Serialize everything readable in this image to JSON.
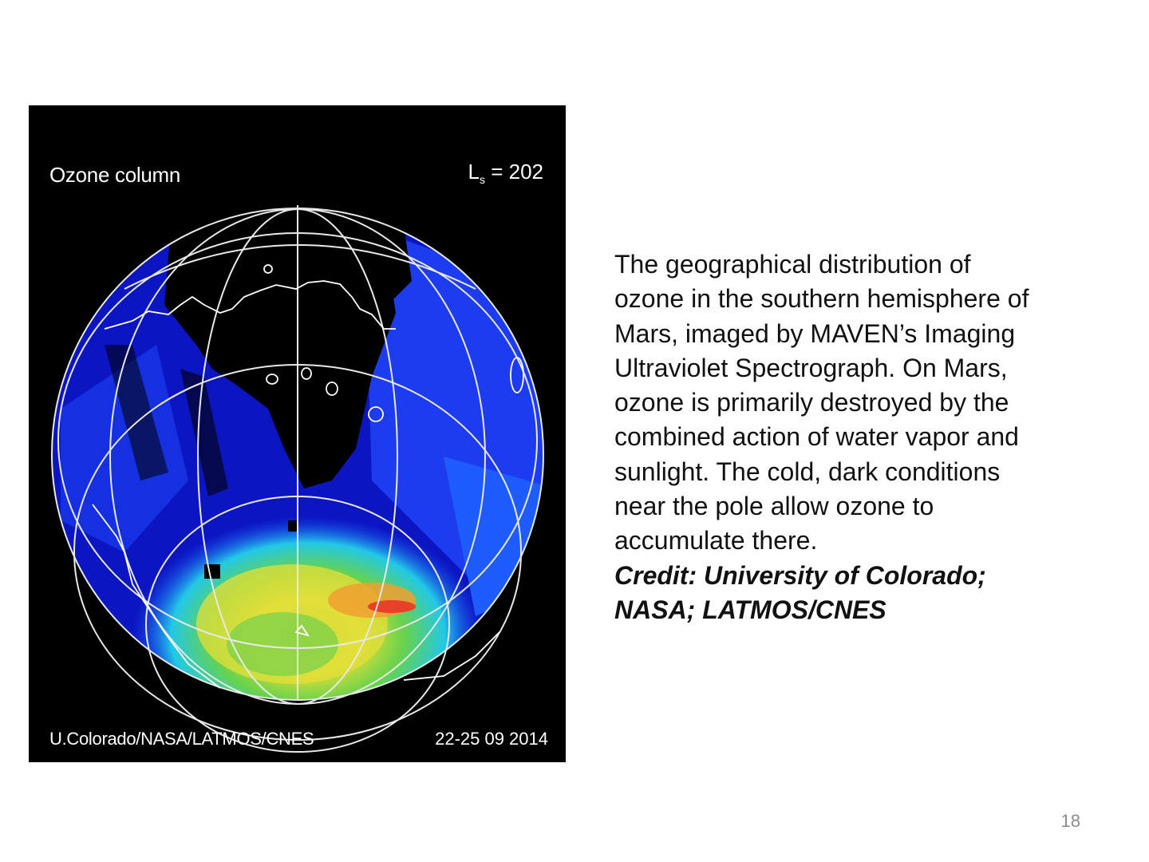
{
  "figure": {
    "title": "Ozone column",
    "ls_symbol": "L",
    "ls_subscript": "s",
    "ls_value": "= 202",
    "credit": "U.Colorado/NASA/LATMOS/CNES",
    "date": "22-25 09 2014",
    "colors": {
      "background": "#000000",
      "low": "#0a14c8",
      "mid_low": "#1e50ff",
      "mid": "#22c8e6",
      "mid_high": "#55d04a",
      "high": "#e8e03a",
      "max": "#e8402a"
    }
  },
  "caption": {
    "lines": [
      "The geographical distribution of",
      "ozone in the southern hemisphere of",
      "Mars, imaged by MAVEN’s Imaging",
      "Ultraviolet Spectrograph. On  Mars,",
      "ozone is primarily destroyed by the",
      "combined action of water vapor and",
      "sunlight. The cold, dark conditions",
      "near the pole allow ozone  to",
      "accumulate there."
    ],
    "credit_lines": [
      "Credit: University of Colorado;",
      "NASA; LATMOS/CNES"
    ]
  },
  "page_number": "18"
}
